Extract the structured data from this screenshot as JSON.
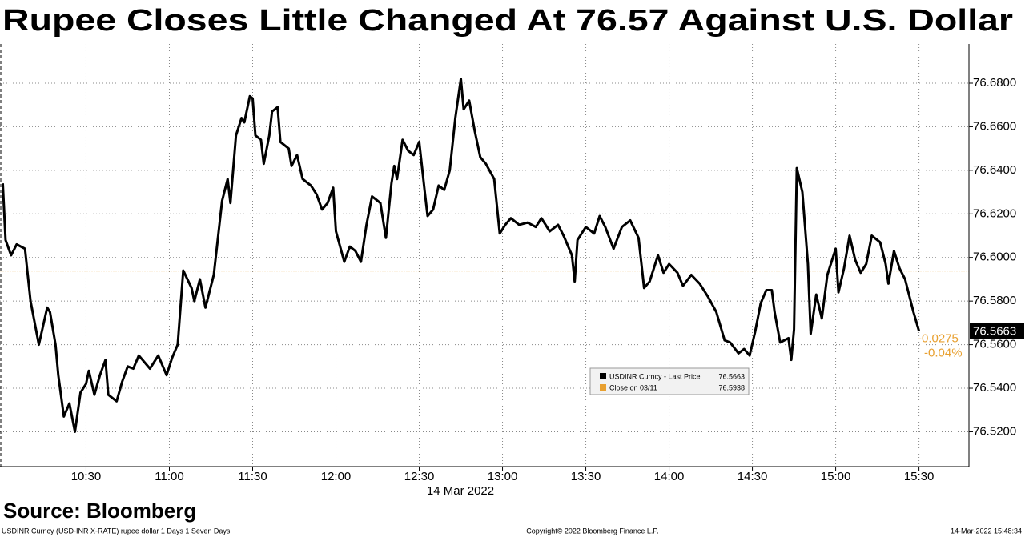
{
  "chart_data": {
    "type": "line",
    "title": "Rupee Closes Little Changed At 76.57 Against U.S. Dollar",
    "x_date_label": "14 Mar 2022",
    "source": "Source: Bloomberg",
    "footer_left": "USDINR Curncy (USD-INR X-RATE) rupee dollar 1 Days 1 Seven Days",
    "footer_center": "Copyright© 2022 Bloomberg Finance L.P.",
    "footer_right": "14-Mar-2022 15:48:34",
    "xlim": [
      "09:59",
      "15:48"
    ],
    "xticks": [
      "10:30",
      "11:00",
      "11:30",
      "12:00",
      "12:30",
      "13:00",
      "13:30",
      "14:00",
      "14:30",
      "15:00",
      "15:30"
    ],
    "ylim": [
      76.504,
      76.698
    ],
    "yticks": [
      {
        "value": 76.52,
        "label": "76.5200"
      },
      {
        "value": 76.54,
        "label": "76.5400"
      },
      {
        "value": 76.56,
        "label": "76.5600"
      },
      {
        "value": 76.58,
        "label": "76.5800"
      },
      {
        "value": 76.6,
        "label": "76.6000"
      },
      {
        "value": 76.62,
        "label": "76.6200"
      },
      {
        "value": 76.64,
        "label": "76.6400"
      },
      {
        "value": 76.66,
        "label": "76.6600"
      },
      {
        "value": 76.68,
        "label": "76.6800"
      }
    ],
    "grid": true,
    "last_price": 76.5663,
    "change": -0.0275,
    "change_pct": {
      "value": -0.04,
      "label": "-0.04%"
    },
    "reference": {
      "name": "Close on 03/11",
      "value": 76.5938,
      "color": "#e8a030"
    },
    "x": [
      "10:00",
      "10:01",
      "10:03",
      "10:05",
      "10:08",
      "10:10",
      "10:13",
      "10:16",
      "10:17",
      "10:19",
      "10:20",
      "10:22",
      "10:24",
      "10:26",
      "10:28",
      "10:30",
      "10:31",
      "10:33",
      "10:35",
      "10:37",
      "10:38",
      "10:41",
      "10:43",
      "10:45",
      "10:47",
      "10:49",
      "10:53",
      "10:56",
      "10:59",
      "11:01",
      "11:03",
      "11:05",
      "11:08",
      "11:09",
      "11:11",
      "11:13",
      "11:16",
      "11:19",
      "11:21",
      "11:22",
      "11:24",
      "11:26",
      "11:27",
      "11:29",
      "11:30",
      "11:31",
      "11:33",
      "11:34",
      "11:36",
      "11:37",
      "11:39",
      "11:40",
      "11:43",
      "11:44",
      "11:46",
      "11:48",
      "11:51",
      "11:53",
      "11:55",
      "11:57",
      "11:59",
      "12:00",
      "12:03",
      "12:05",
      "12:07",
      "12:09",
      "12:11",
      "12:13",
      "12:14",
      "12:16",
      "12:18",
      "12:20",
      "12:21",
      "12:22",
      "12:24",
      "12:26",
      "12:28",
      "12:30",
      "12:32",
      "12:33",
      "12:35",
      "12:37",
      "12:39",
      "12:41",
      "12:43",
      "12:45",
      "12:46",
      "12:48",
      "12:50",
      "12:52",
      "12:54",
      "12:57",
      "12:59",
      "13:01",
      "13:03",
      "13:06",
      "13:09",
      "13:12",
      "13:14",
      "13:17",
      "13:20",
      "13:22",
      "13:25",
      "13:26",
      "13:27",
      "13:30",
      "13:33",
      "13:35",
      "13:37",
      "13:40",
      "13:43",
      "13:46",
      "13:49",
      "13:51",
      "13:53",
      "13:56",
      "13:58",
      "14:00",
      "14:03",
      "14:05",
      "14:08",
      "14:11",
      "14:14",
      "14:17",
      "14:20",
      "14:22",
      "14:25",
      "14:27",
      "14:29",
      "14:31",
      "14:33",
      "14:35",
      "14:37",
      "14:38",
      "14:40",
      "14:43",
      "14:44",
      "14:45",
      "14:46",
      "14:48",
      "14:50",
      "14:51",
      "14:53",
      "14:55",
      "14:57",
      "15:00",
      "15:01",
      "15:03",
      "15:05",
      "15:07",
      "15:09",
      "15:11",
      "15:13",
      "15:16",
      "15:18",
      "15:19",
      "15:21",
      "15:23",
      "15:25",
      "15:28",
      "15:30"
    ],
    "series": [
      {
        "name": "USDINR Curncy - Last Price",
        "color": "#000000",
        "values": [
          76.634,
          76.608,
          76.601,
          76.606,
          76.604,
          76.58,
          76.56,
          76.577,
          76.575,
          76.56,
          76.546,
          76.527,
          76.533,
          76.52,
          76.538,
          76.542,
          76.548,
          76.537,
          76.546,
          76.553,
          76.537,
          76.534,
          76.543,
          76.55,
          76.549,
          76.555,
          76.549,
          76.555,
          76.546,
          76.554,
          76.56,
          76.594,
          76.586,
          76.58,
          76.59,
          76.577,
          76.592,
          76.626,
          76.636,
          76.625,
          76.656,
          76.664,
          76.662,
          76.674,
          76.673,
          76.656,
          76.654,
          76.643,
          76.656,
          76.667,
          76.669,
          76.653,
          76.65,
          76.642,
          76.647,
          76.636,
          76.633,
          76.629,
          76.622,
          76.625,
          76.632,
          76.612,
          76.598,
          76.605,
          76.603,
          76.598,
          76.615,
          76.628,
          76.627,
          76.625,
          76.609,
          76.634,
          76.642,
          76.636,
          76.654,
          76.649,
          76.647,
          76.653,
          76.63,
          76.619,
          76.622,
          76.633,
          76.631,
          76.64,
          76.664,
          76.682,
          76.668,
          76.672,
          76.658,
          76.646,
          76.643,
          76.636,
          76.611,
          76.615,
          76.618,
          76.615,
          76.616,
          76.614,
          76.618,
          76.612,
          76.615,
          76.61,
          76.601,
          76.589,
          76.608,
          76.614,
          76.611,
          76.619,
          76.614,
          76.604,
          76.614,
          76.617,
          76.609,
          76.586,
          76.589,
          76.601,
          76.593,
          76.597,
          76.593,
          76.587,
          76.592,
          76.588,
          76.582,
          76.575,
          76.562,
          76.561,
          76.556,
          76.558,
          76.555,
          76.566,
          76.579,
          76.585,
          76.585,
          76.575,
          76.561,
          76.563,
          76.553,
          76.567,
          76.641,
          76.63,
          76.597,
          76.565,
          76.583,
          76.572,
          76.592,
          76.604,
          76.584,
          76.595,
          76.61,
          76.599,
          76.593,
          76.597,
          76.61,
          76.607,
          76.597,
          76.588,
          76.603,
          76.595,
          76.59,
          76.575,
          76.5663
        ]
      }
    ]
  }
}
